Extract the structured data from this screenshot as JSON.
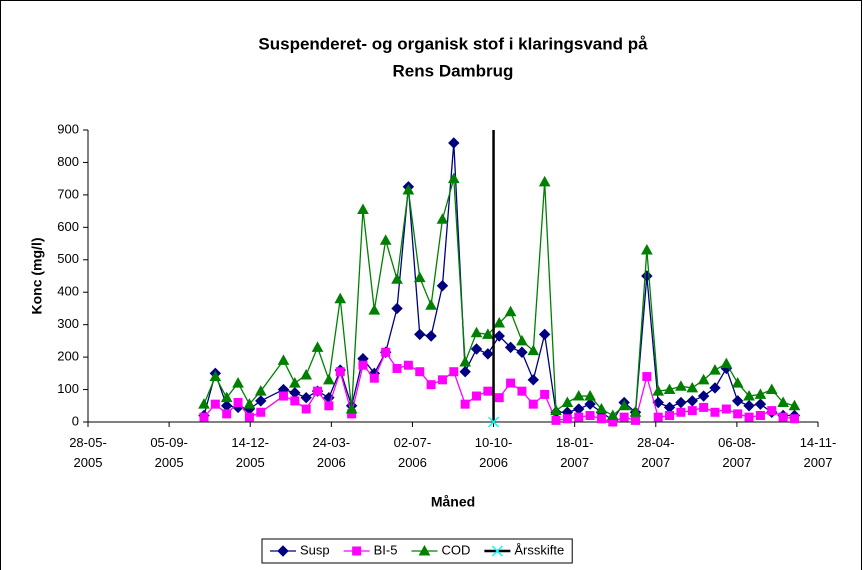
{
  "chart_data": {
    "type": "line",
    "title": [
      "Suspenderet- og organisk stof i klaringsvand på",
      "Rens Dambrug"
    ],
    "x_label": "Måned",
    "y_label": "Konc (mg/l)",
    "x": [
      "18-10-2005",
      "01-11-2005",
      "15-11-2005",
      "29-11-2005",
      "13-12-2005",
      "27-12-2005",
      "24-01-2006",
      "07-02-2006",
      "21-02-2006",
      "07-03-2006",
      "21-03-2006",
      "04-04-2006",
      "18-04-2006",
      "02-05-2006",
      "16-05-2006",
      "30-05-2006",
      "13-06-2006",
      "27-06-2006",
      "11-07-2006",
      "25-07-2006",
      "08-08-2006",
      "22-08-2006",
      "05-09-2006",
      "19-09-2006",
      "03-10-2006",
      "17-10-2006",
      "31-10-2006",
      "14-11-2006",
      "28-11-2006",
      "12-12-2006",
      "26-12-2006",
      "09-01-2007",
      "23-01-2007",
      "06-02-2007",
      "20-02-2007",
      "06-03-2007",
      "20-03-2007",
      "03-04-2007",
      "17-04-2007",
      "01-05-2007",
      "15-05-2007",
      "29-05-2007",
      "12-06-2007",
      "26-06-2007",
      "10-07-2007",
      "24-07-2007",
      "07-08-2007",
      "21-08-2007",
      "04-09-2007",
      "18-09-2007",
      "02-10-2007",
      "16-10-2007"
    ],
    "series": [
      {
        "name": "Susp",
        "color": "#000080",
        "marker": "diamond",
        "values": [
          20,
          150,
          50,
          45,
          40,
          65,
          100,
          90,
          75,
          95,
          75,
          160,
          50,
          195,
          150,
          215,
          350,
          725,
          270,
          265,
          420,
          860,
          155,
          225,
          210,
          265,
          230,
          215,
          130,
          270,
          30,
          30,
          40,
          55,
          30,
          5,
          60,
          30,
          450,
          60,
          45,
          60,
          65,
          80,
          105,
          165,
          65,
          50,
          55,
          30,
          20,
          20
        ]
      },
      {
        "name": "BI-5",
        "color": "#ff00ff",
        "marker": "square",
        "values": [
          15,
          55,
          25,
          60,
          15,
          30,
          80,
          65,
          40,
          95,
          50,
          155,
          25,
          175,
          135,
          215,
          165,
          175,
          155,
          115,
          130,
          155,
          55,
          80,
          95,
          75,
          120,
          95,
          55,
          85,
          5,
          10,
          15,
          20,
          10,
          0,
          15,
          5,
          140,
          15,
          20,
          30,
          35,
          45,
          30,
          40,
          25,
          15,
          20,
          35,
          15,
          10
        ]
      },
      {
        "name": "COD",
        "color": "#008000",
        "marker": "triangle",
        "values": [
          55,
          140,
          75,
          120,
          55,
          95,
          190,
          120,
          145,
          230,
          130,
          380,
          40,
          655,
          345,
          560,
          440,
          715,
          445,
          360,
          625,
          750,
          185,
          275,
          270,
          305,
          340,
          250,
          220,
          740,
          35,
          60,
          80,
          80,
          40,
          20,
          50,
          30,
          530,
          95,
          100,
          110,
          105,
          130,
          160,
          180,
          120,
          80,
          85,
          100,
          60,
          50
        ]
      },
      {
        "name": "Årsskifte",
        "color": "#000000",
        "marker": "x",
        "marker_color": "#00ffff",
        "x": [
          "10-10-2006",
          "10-10-2006"
        ],
        "values": [
          0,
          900
        ]
      }
    ],
    "xlim": [
      "28-05-2005",
      "14-11-2007"
    ],
    "xticks": [
      "28-05-2005",
      "05-09-2005",
      "14-12-2005",
      "24-03-2006",
      "02-07-2006",
      "10-10-2006",
      "18-01-2007",
      "28-04-2007",
      "06-08-2007",
      "14-11-2007"
    ],
    "ylim": [
      0,
      900
    ],
    "yticks": [
      0,
      100,
      200,
      300,
      400,
      500,
      600,
      700,
      800,
      900
    ],
    "grid": false,
    "legend": "bottom"
  }
}
